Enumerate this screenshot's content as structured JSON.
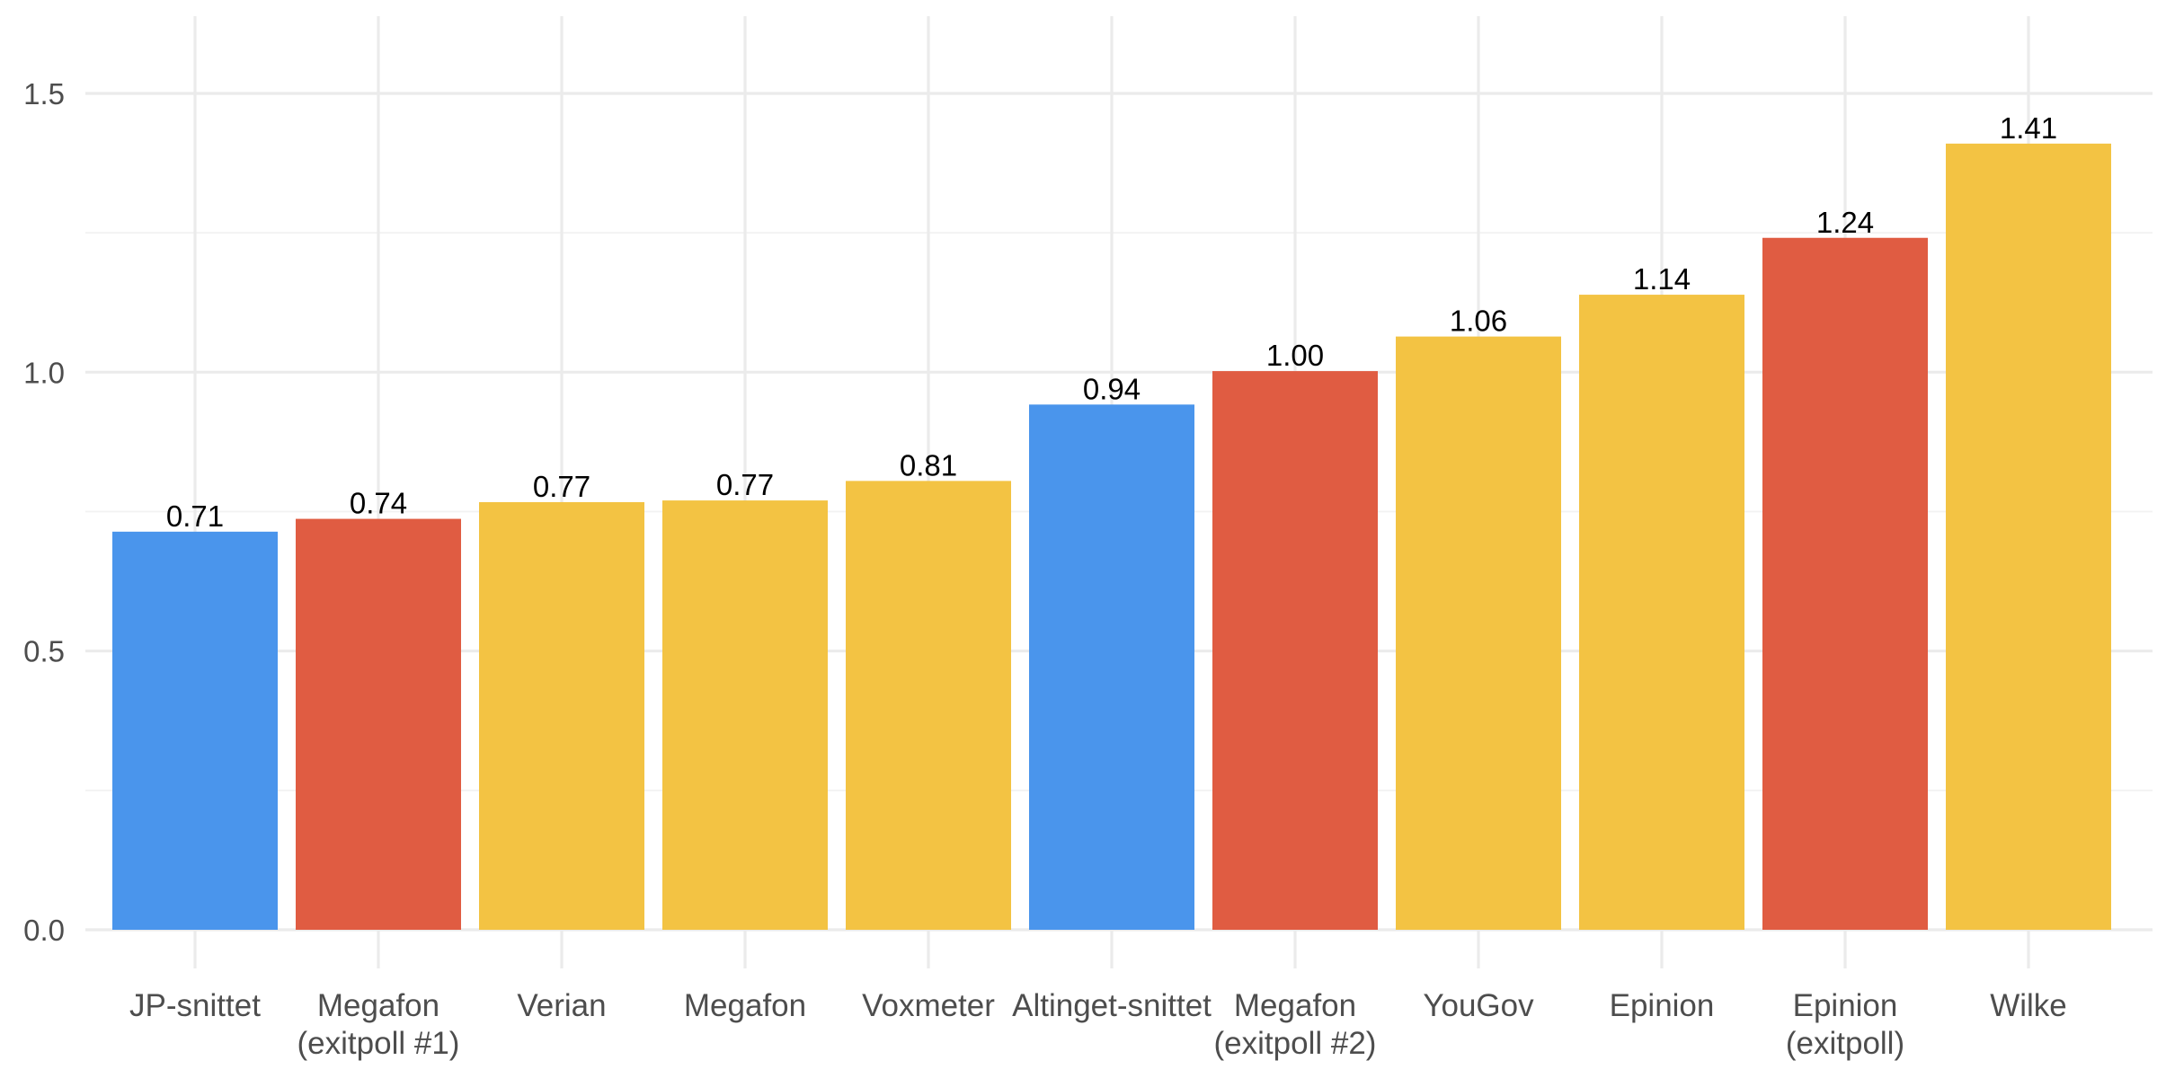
{
  "chart_data": {
    "type": "bar",
    "title": "",
    "xlabel": "",
    "ylabel": "",
    "categories": [
      [
        "JP-snittet"
      ],
      [
        "Megafon",
        "(exitpoll #1)"
      ],
      [
        "Verian"
      ],
      [
        "Megafon"
      ],
      [
        "Voxmeter"
      ],
      [
        "Altinget-snittet"
      ],
      [
        "Megafon",
        "(exitpoll #2)"
      ],
      [
        "YouGov"
      ],
      [
        "Epinion"
      ],
      [
        "Epinion",
        "(exitpoll)"
      ],
      [
        "Wilke"
      ]
    ],
    "values": [
      0.714,
      0.737,
      0.767,
      0.77,
      0.805,
      0.942,
      1.002,
      1.064,
      1.139,
      1.241,
      1.41
    ],
    "value_labels": [
      "0.71",
      "0.74",
      "0.77",
      "0.77",
      "0.81",
      "0.94",
      "1.00",
      "1.06",
      "1.14",
      "1.24",
      "1.41"
    ],
    "bar_colors": [
      "#4a95ec",
      "#e05c42",
      "#f3c343",
      "#f3c343",
      "#f3c343",
      "#4a95ec",
      "#e05c42",
      "#f3c343",
      "#f3c343",
      "#e05c42",
      "#f3c343"
    ],
    "ylim": [
      -0.07,
      1.63
    ],
    "yticks": [
      0.0,
      0.5,
      1.0,
      1.5
    ],
    "ytick_labels": [
      "0.0",
      "0.5",
      "1.0",
      "1.5"
    ],
    "y_minor_ticks": [
      0.25,
      0.75,
      1.25
    ],
    "grid": true,
    "legend": "none"
  }
}
